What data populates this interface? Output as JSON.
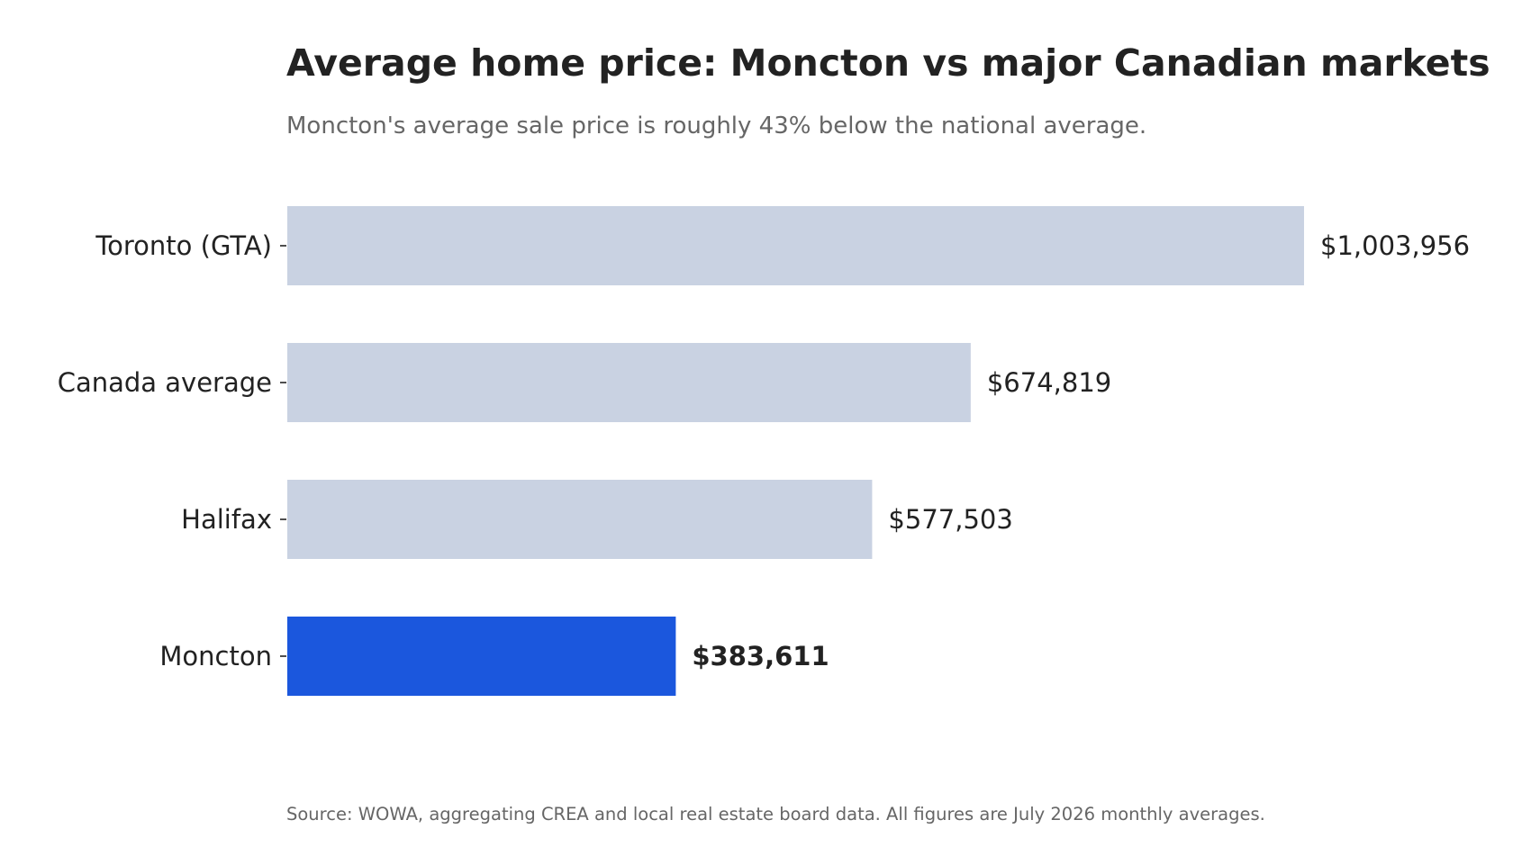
{
  "chart_data": {
    "type": "bar",
    "orientation": "horizontal",
    "title": "Average home price: Moncton vs major Canadian markets",
    "subtitle": "Moncton's average sale price is roughly 43% below the national average.",
    "categories": [
      "Toronto (GTA)",
      "Canada average",
      "Halifax",
      "Moncton"
    ],
    "values": [
      1003956,
      674819,
      577503,
      383611
    ],
    "value_labels": [
      "$1,003,956",
      "$674,819",
      "$577,503",
      "$383,611"
    ],
    "highlight_index": 3,
    "xlim": [
      0,
      1003956
    ],
    "grid": false,
    "legend": "none",
    "colors": {
      "default_bar": "#c9d2e2",
      "highlight_bar": "#1b57dd",
      "text": "#222222",
      "muted_text": "#666666"
    },
    "source": "Source: WOWA, aggregating CREA and local real estate board data. All figures are July 2026 monthly averages."
  }
}
